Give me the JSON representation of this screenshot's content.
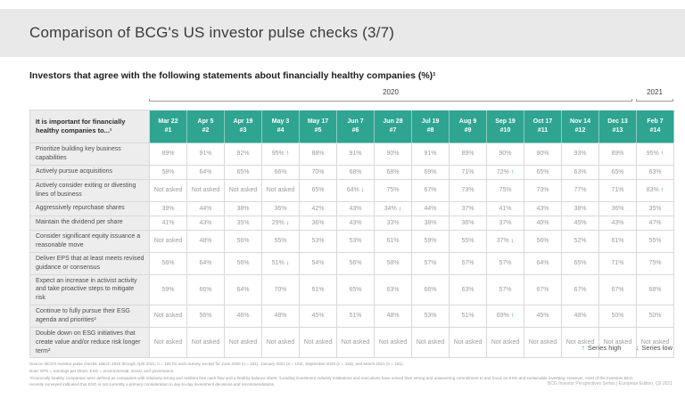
{
  "page": {
    "title": "Comparison of BCG's US investor pulse checks (3/7)",
    "subtitle": "Investors that agree with the following statements about financially healthy companies (%)¹"
  },
  "colors": {
    "accent_teal": "#2fa491",
    "arrow_down_red": "#c05b4b",
    "title_band_gray": "#e9e9e9",
    "label_column_gray": "#ededed"
  },
  "year_groups": [
    {
      "label": "2020"
    },
    {
      "label": "2021"
    }
  ],
  "table": {
    "corner_header": "It is important for financially healthy companies to...¹",
    "columns": [
      {
        "date": "Mar 22",
        "num": "#1"
      },
      {
        "date": "Apr 5",
        "num": "#2"
      },
      {
        "date": "Apr 19",
        "num": "#3"
      },
      {
        "date": "May 3",
        "num": "#4"
      },
      {
        "date": "May 17",
        "num": "#5"
      },
      {
        "date": "Jun 7",
        "num": "#6"
      },
      {
        "date": "Jun 28",
        "num": "#7"
      },
      {
        "date": "Jul 19",
        "num": "#8"
      },
      {
        "date": "Aug 9",
        "num": "#9"
      },
      {
        "date": "Sep 19",
        "num": "#10"
      },
      {
        "date": "Oct 17",
        "num": "#11"
      },
      {
        "date": "Nov 14",
        "num": "#12"
      },
      {
        "date": "Dec 13",
        "num": "#13"
      },
      {
        "date": "Feb 7",
        "num": "#14"
      }
    ],
    "rows": [
      {
        "label": "Prioritize building key business capabilities",
        "tall": false,
        "values": [
          "89%",
          "91%",
          "92%",
          "95%↑",
          "88%",
          "91%",
          "90%",
          "91%",
          "89%",
          "90%",
          "90%",
          "93%",
          "89%",
          "95%↑"
        ]
      },
      {
        "label": "Actively pursue acquisitions",
        "tall": false,
        "values": [
          "58%",
          "64%",
          "65%",
          "66%",
          "70%",
          "68%",
          "68%",
          "69%",
          "71%",
          "72%↑",
          "65%",
          "63%",
          "65%",
          "63%"
        ]
      },
      {
        "label": "Actively consider exiting or divesting lines of business",
        "tall": true,
        "values": [
          "Not asked",
          "Not asked",
          "Not asked",
          "Not asked",
          "65%",
          "64%↓",
          "75%",
          "67%",
          "73%",
          "75%",
          "73%",
          "77%",
          "71%",
          "83%↑"
        ]
      },
      {
        "label": "Aggressively repurchase shares",
        "tall": false,
        "values": [
          "39%",
          "44%",
          "38%",
          "36%",
          "42%",
          "43%",
          "34%↓",
          "44%",
          "37%",
          "41%",
          "43%",
          "38%",
          "36%",
          "35%"
        ]
      },
      {
        "label": "Maintain the dividend per share",
        "tall": false,
        "values": [
          "41%",
          "43%",
          "35%",
          "29%↓",
          "36%",
          "43%",
          "33%",
          "38%",
          "36%",
          "37%",
          "40%",
          "45%",
          "43%",
          "47%"
        ]
      },
      {
        "label": "Consider significant equity issuance a reasonable move",
        "tall": true,
        "values": [
          "Not asked",
          "48%",
          "56%",
          "55%",
          "53%",
          "53%",
          "61%",
          "59%",
          "55%",
          "37%↓",
          "56%",
          "52%",
          "61%",
          "55%"
        ]
      },
      {
        "label": "Deliver EPS that at least meets revised guidance or consensus",
        "tall": true,
        "values": [
          "56%",
          "64%",
          "56%",
          "51%↓",
          "54%",
          "56%",
          "58%",
          "57%",
          "57%",
          "57%",
          "64%",
          "65%",
          "71%",
          "75%"
        ]
      },
      {
        "label": "Expect an increase in activist activity and take proactive steps to mitigate risk",
        "tall": true,
        "values": [
          "59%",
          "66%",
          "64%",
          "70%",
          "61%",
          "65%",
          "63%",
          "66%",
          "63%",
          "57%",
          "67%",
          "67%",
          "67%",
          "68%"
        ]
      },
      {
        "label": "Continue to fully pursue their ESG agenda and priorities²",
        "tall": true,
        "values": [
          "Not asked",
          "56%",
          "46%",
          "48%",
          "45%",
          "51%",
          "48%",
          "53%",
          "51%",
          "69%↑",
          "45%",
          "48%",
          "50%",
          "50%"
        ]
      },
      {
        "label": "Double down on ESG initiatives that create value and/or reduce risk longer term²",
        "tall": true,
        "values": [
          "Not asked",
          "Not asked",
          "Not asked",
          "Not asked",
          "Not asked",
          "Not asked",
          "Not asked",
          "Not asked",
          "Not asked",
          "Not asked",
          "Not asked",
          "Not asked",
          "Not asked",
          "Not asked"
        ]
      }
    ]
  },
  "legend": {
    "up_glyph": "↑",
    "high_label": "Series high",
    "down_glyph": "↓",
    "low_label": "Series low"
  },
  "footnotes": [
    "Source: BCG's investor pulse checks, March 2020 through April 2021; n = 150 for each survey, except for June 2020 (n = 151), January 2021 (n = 153), September 2020 (n = 153), and March 2021 (n = 151).",
    "Note: EPS = earnings per share; ESG = environmental, social, and governance.",
    "¹Financially healthy companies were defined as companies with relatively strong and resilient free cash flow and a healthy balance sheet. ²Leading investment industry institutions and executives have voiced their strong and unwavering commitment to and focus on ESG and sustainable investing. However, most of the investors BCG recently surveyed indicated that ESG is not currently a primary consideration in day-to-day investment decisions and recommendations."
  ],
  "footer": "BCG Investor Perspectives Series | European Edition, Q2 2021"
}
